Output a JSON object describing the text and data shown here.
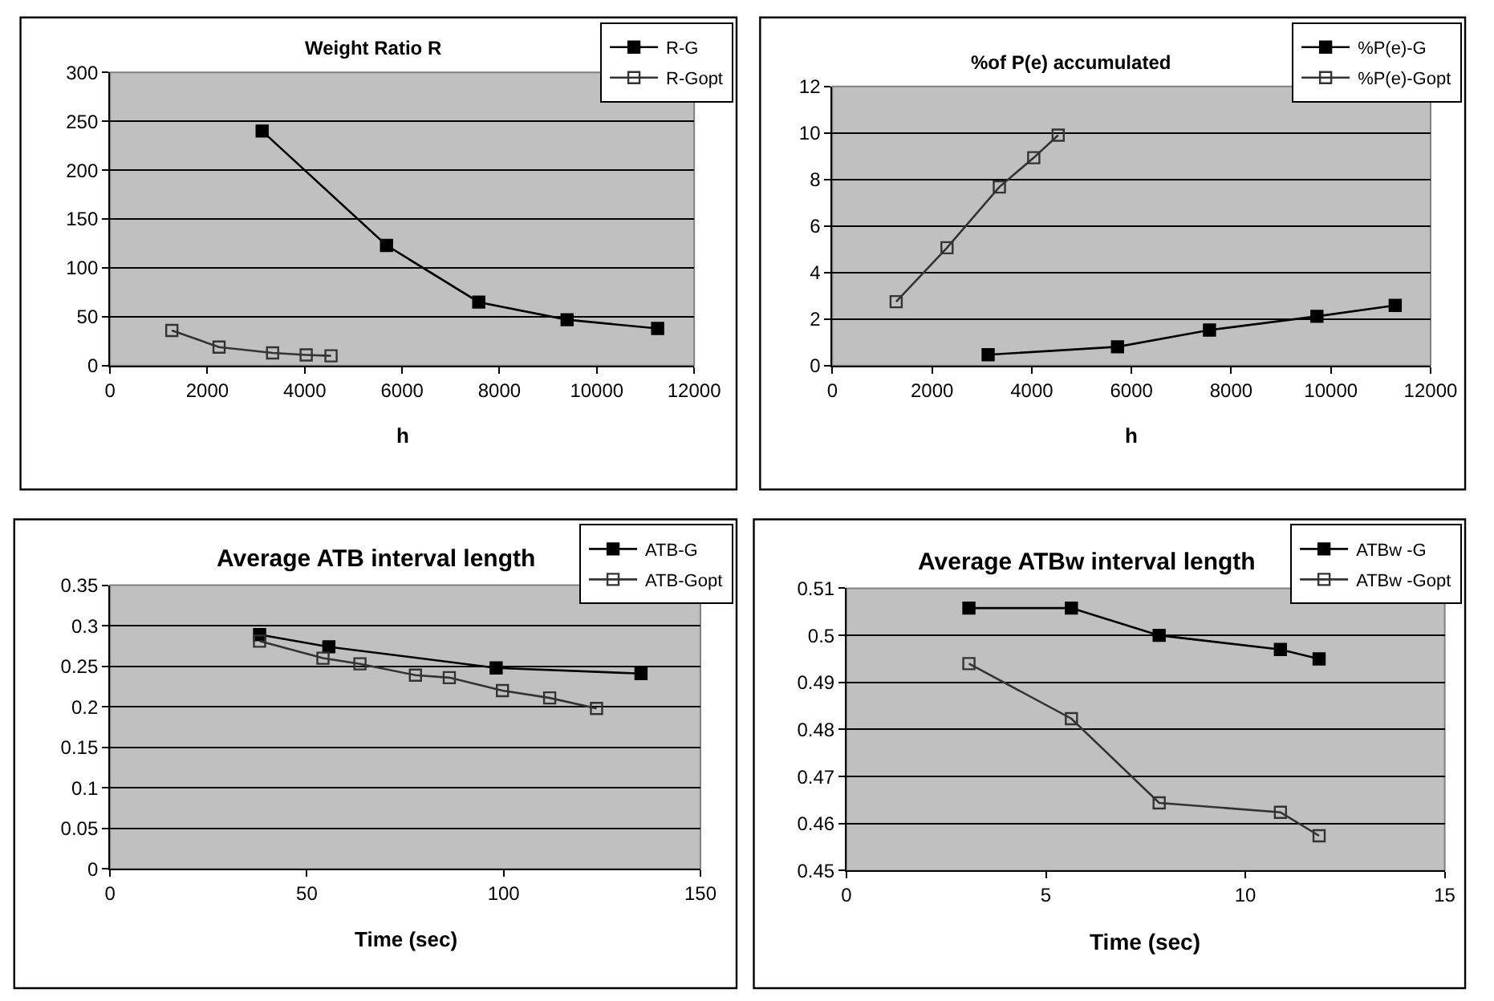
{
  "chart_data": [
    {
      "type": "line",
      "title": "Weight Ratio R",
      "xlabel": "h",
      "xlim": [
        0,
        12000
      ],
      "xticks": [
        0,
        2000,
        4000,
        6000,
        8000,
        10000,
        12000
      ],
      "ylim": [
        0,
        300
      ],
      "yticks": [
        0,
        50,
        100,
        150,
        200,
        250,
        300
      ],
      "grid": "y",
      "legend": "top right",
      "line_style": "solid",
      "series": [
        {
          "name": "R-G",
          "color": "#000000",
          "marker": "square",
          "x": [
            3125,
            5680,
            7575,
            9390,
            11250
          ],
          "values": [
            240,
            123,
            65,
            47,
            38
          ]
        },
        {
          "name": "R-Gopt",
          "color": "#333333",
          "marker": "square-open",
          "x": [
            1270,
            2240,
            3340,
            4030,
            4540
          ],
          "values": [
            36,
            19,
            13,
            11,
            10
          ]
        }
      ]
    },
    {
      "type": "line",
      "title": "%of P(e) accumulated",
      "xlabel": "h",
      "xlim": [
        0,
        12000
      ],
      "xticks": [
        0,
        2000,
        4000,
        6000,
        8000,
        10000,
        12000
      ],
      "ylim": [
        0,
        12
      ],
      "yticks": [
        0,
        2,
        4,
        6,
        8,
        10,
        12
      ],
      "grid": "y",
      "legend": "top right",
      "line_style": "solid",
      "series": [
        {
          "name": "%P(e)-G",
          "color": "#000000",
          "marker": "square",
          "x": [
            3125,
            5720,
            7565,
            9720,
            11290
          ],
          "values": [
            0.47,
            0.81,
            1.53,
            2.12,
            2.59
          ]
        },
        {
          "name": "%P(e)-Gopt",
          "color": "#333333",
          "marker": "square-open",
          "x": [
            1280,
            2300,
            3350,
            4040,
            4530
          ],
          "values": [
            2.75,
            5.07,
            7.68,
            8.94,
            9.91
          ]
        }
      ]
    },
    {
      "type": "line",
      "title": "Average ATB interval length",
      "xlabel": "Time (sec)",
      "xlim": [
        0,
        150
      ],
      "xticks": [
        0,
        50,
        100,
        150
      ],
      "ylim": [
        0,
        0.35
      ],
      "yticks": [
        0,
        0.05,
        0.1,
        0.15,
        0.2,
        0.25,
        0.3,
        0.35
      ],
      "grid": "y",
      "legend": "top right",
      "line_style": "solid",
      "series": [
        {
          "name": "ATB-G",
          "color": "#000000",
          "marker": "square",
          "x": [
            38,
            55.6,
            98.1,
            134.9
          ],
          "values": [
            0.289,
            0.274,
            0.248,
            0.241
          ]
        },
        {
          "name": "ATB-Gopt",
          "color": "#333333",
          "marker": "square-open",
          "x": [
            38,
            54.1,
            63.5,
            77.6,
            86.2,
            99.7,
            111.7,
            123.6
          ],
          "values": [
            0.281,
            0.26,
            0.253,
            0.239,
            0.236,
            0.22,
            0.211,
            0.198
          ]
        }
      ]
    },
    {
      "type": "line",
      "title": "Average ATBw interval length",
      "xlabel": "Time (sec)",
      "xlim": [
        0,
        15
      ],
      "xticks": [
        0,
        5,
        10,
        15
      ],
      "ylim": [
        0.45,
        0.51
      ],
      "yticks": [
        0.45,
        0.46,
        0.47,
        0.48,
        0.49,
        0.5,
        0.51
      ],
      "grid": "y",
      "legend": "top right",
      "line_style": "solid",
      "series": [
        {
          "name": "ATBw -G",
          "color": "#000000",
          "marker": "square",
          "x": [
            3.07,
            5.64,
            7.84,
            10.88,
            11.85
          ],
          "values": [
            0.5058,
            0.5058,
            0.5,
            0.497,
            0.495
          ]
        },
        {
          "name": "ATBw -Gopt",
          "color": "#333333",
          "marker": "square-open",
          "x": [
            3.07,
            5.64,
            7.84,
            10.88,
            11.85
          ],
          "values": [
            0.494,
            0.4823,
            0.4644,
            0.4624,
            0.4574
          ]
        }
      ]
    }
  ]
}
